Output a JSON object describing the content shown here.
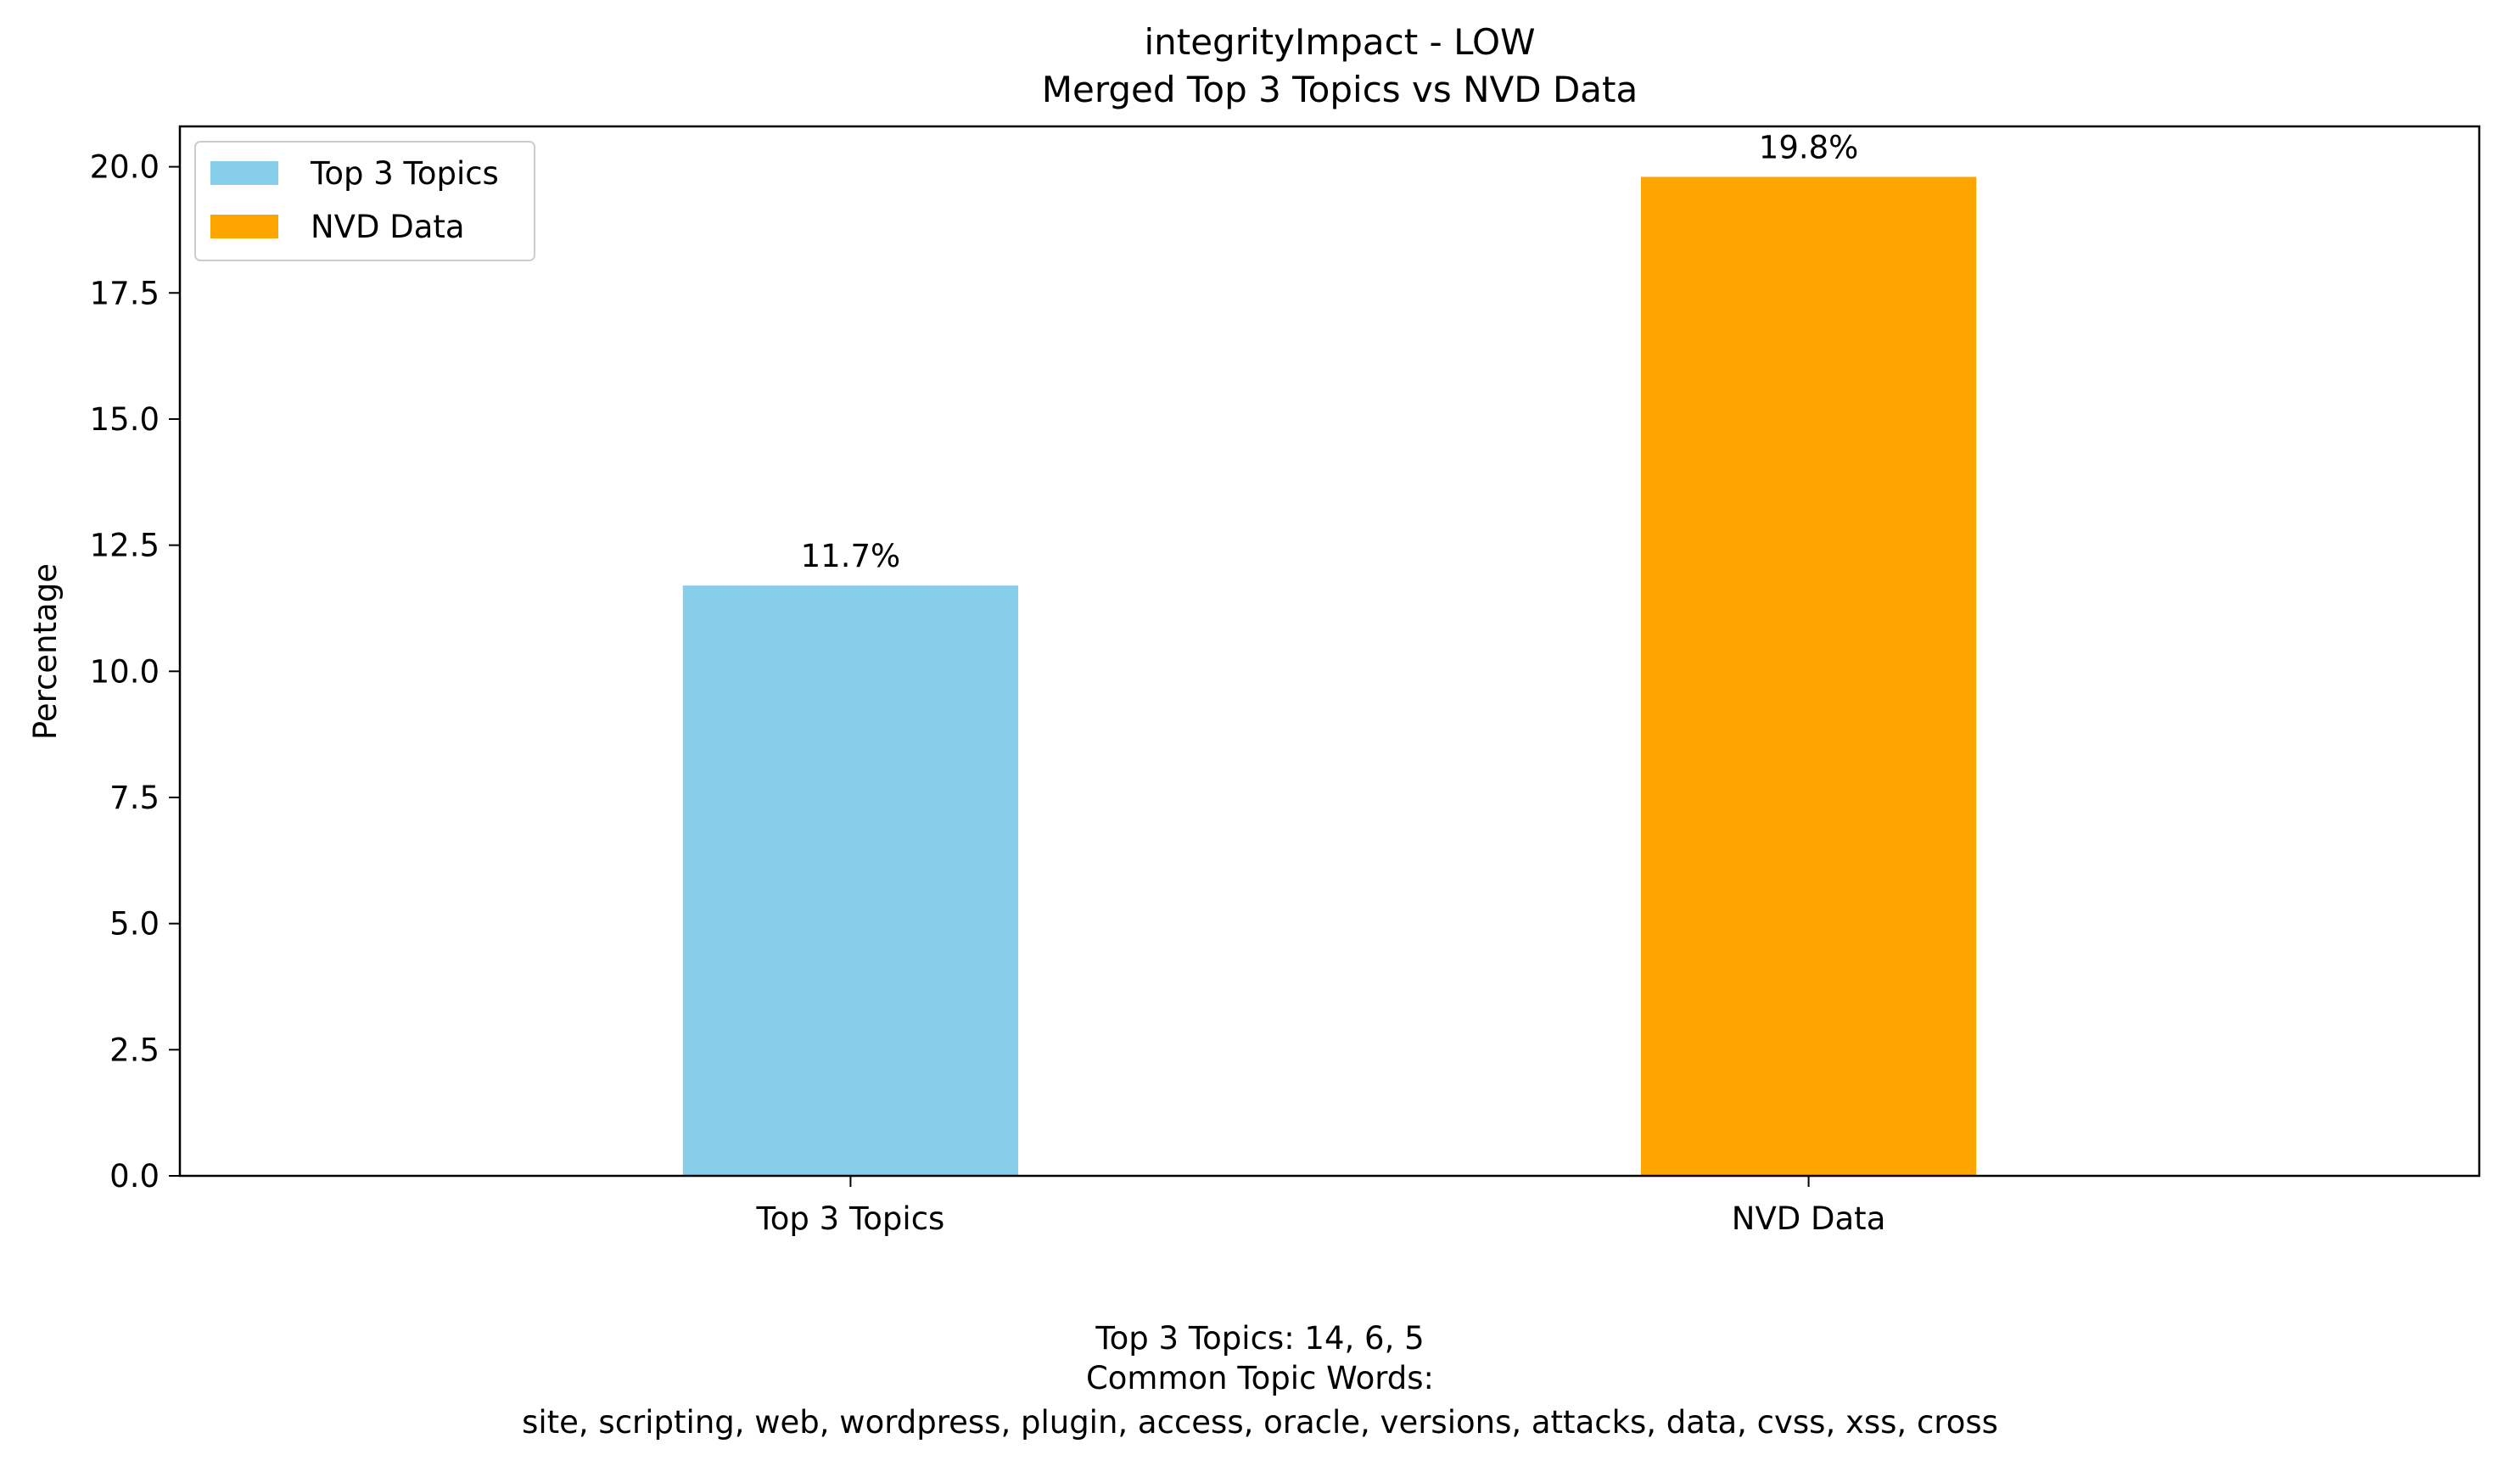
{
  "chart_data": {
    "type": "bar",
    "title": "integrityImpact - LOW",
    "subtitle": "Merged Top 3 Topics vs NVD Data",
    "xlabel": "",
    "ylabel": "Percentage",
    "categories": [
      "Top 3 Topics",
      "NVD Data"
    ],
    "values": [
      11.7,
      19.8
    ],
    "data_labels": [
      "11.7%",
      "19.8%"
    ],
    "colors": [
      "#87ceeb",
      "#ffa500"
    ],
    "ylim": [
      0,
      20.8
    ],
    "yticks": [
      0.0,
      2.5,
      5.0,
      7.5,
      10.0,
      12.5,
      15.0,
      17.5,
      20.0
    ],
    "ytick_labels": [
      "0.0",
      "2.5",
      "5.0",
      "7.5",
      "10.0",
      "12.5",
      "15.0",
      "17.5",
      "20.0"
    ],
    "grid": false,
    "legend": {
      "placement": "top-left",
      "entries": [
        {
          "label": "Top 3 Topics",
          "color": "#87ceeb"
        },
        {
          "label": "NVD Data",
          "color": "#ffa500"
        }
      ]
    }
  },
  "caption": {
    "line1": "Top 3 Topics: 14, 6, 5",
    "line2": "Common Topic Words:",
    "line3": "site,  scripting,  web,  wordpress,  plugin,  access,  oracle,  versions,  attacks,  data,  cvss,  xss,  cross"
  }
}
